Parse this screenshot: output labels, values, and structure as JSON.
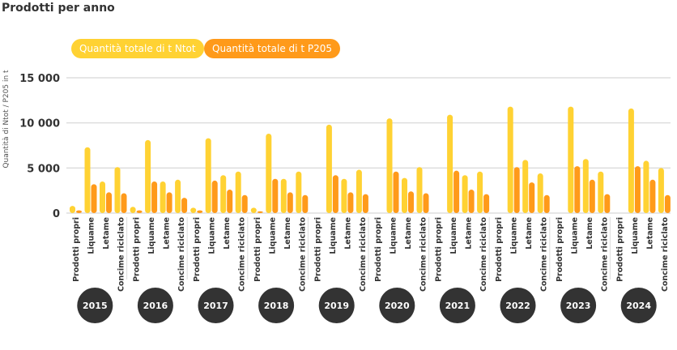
{
  "title": "Prodotti per anno",
  "chart_data": {
    "type": "bar",
    "title": "Prodotti per anno",
    "ylabel": "Quantità di Ntot / P205 in t",
    "ylim": [
      0,
      15000
    ],
    "yticks": [
      0,
      5000,
      10000,
      15000
    ],
    "ytick_labels": [
      "0",
      "5 000",
      "10 000",
      "15 000"
    ],
    "grid": true,
    "legend_position": "top-left",
    "years": [
      "2015",
      "2016",
      "2017",
      "2018",
      "2019",
      "2020",
      "2021",
      "2022",
      "2023",
      "2024"
    ],
    "categories": [
      "Prodotti propri",
      "Liquame",
      "Letame",
      "Concime riciclato"
    ],
    "series": [
      {
        "name": "Quantità totale di t Ntot",
        "color": "#ffd233",
        "values": [
          [
            800,
            7300,
            3500,
            5100
          ],
          [
            700,
            8100,
            3500,
            3700
          ],
          [
            600,
            8300,
            4200,
            4600
          ],
          [
            600,
            8800,
            3800,
            4600
          ],
          [
            0,
            9800,
            3800,
            4800
          ],
          [
            0,
            10500,
            3900,
            5100
          ],
          [
            0,
            10900,
            4200,
            4600
          ],
          [
            0,
            11800,
            5900,
            4400
          ],
          [
            0,
            11800,
            6000,
            4600
          ],
          [
            0,
            11600,
            5800,
            5000
          ]
        ]
      },
      {
        "name": "Quantità totale di t P205",
        "color": "#ff9a1a",
        "values": [
          [
            300,
            3200,
            2300,
            2200
          ],
          [
            300,
            3500,
            2300,
            1700
          ],
          [
            300,
            3600,
            2600,
            2000
          ],
          [
            200,
            3800,
            2300,
            2000
          ],
          [
            0,
            4200,
            2300,
            2100
          ],
          [
            0,
            4600,
            2400,
            2200
          ],
          [
            0,
            4700,
            2600,
            2100
          ],
          [
            0,
            5100,
            3400,
            2000
          ],
          [
            0,
            5200,
            3700,
            2100
          ],
          [
            0,
            5200,
            3700,
            2000
          ]
        ]
      }
    ]
  }
}
